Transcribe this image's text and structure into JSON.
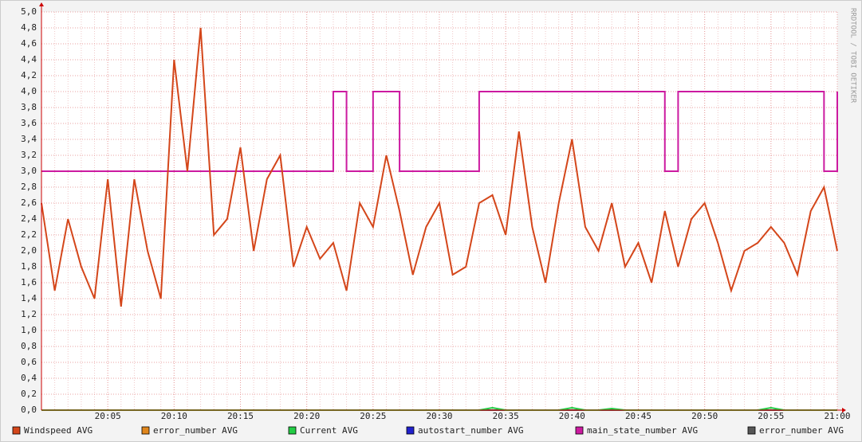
{
  "chart_data": {
    "type": "line",
    "watermark": "RRDTOOL / TOBI OETIKER",
    "x": [
      "20:00",
      "20:01",
      "20:02",
      "20:03",
      "20:04",
      "20:05",
      "20:06",
      "20:07",
      "20:08",
      "20:09",
      "20:10",
      "20:11",
      "20:12",
      "20:13",
      "20:14",
      "20:15",
      "20:16",
      "20:17",
      "20:18",
      "20:19",
      "20:20",
      "20:21",
      "20:22",
      "20:23",
      "20:24",
      "20:25",
      "20:26",
      "20:27",
      "20:28",
      "20:29",
      "20:30",
      "20:31",
      "20:32",
      "20:33",
      "20:34",
      "20:35",
      "20:36",
      "20:37",
      "20:38",
      "20:39",
      "20:40",
      "20:41",
      "20:42",
      "20:43",
      "20:44",
      "20:45",
      "20:46",
      "20:47",
      "20:48",
      "20:49",
      "20:50",
      "20:51",
      "20:52",
      "20:53",
      "20:54",
      "20:55",
      "20:56",
      "20:57",
      "20:58",
      "20:59",
      "21:00"
    ],
    "xlim": [
      "20:00",
      "21:00"
    ],
    "xticks": [
      "20:05",
      "20:10",
      "20:15",
      "20:20",
      "20:25",
      "20:30",
      "20:35",
      "20:40",
      "20:45",
      "20:50",
      "20:55",
      "21:00"
    ],
    "ylim": [
      0,
      5
    ],
    "yticks": [
      {
        "value": 0,
        "label": "0,0"
      },
      {
        "value": 0.2,
        "label": "0,2"
      },
      {
        "value": 0.4,
        "label": "0,4"
      },
      {
        "value": 0.6,
        "label": "0,6"
      },
      {
        "value": 0.8,
        "label": "0,8"
      },
      {
        "value": 1,
        "label": "1,0"
      },
      {
        "value": 1.2,
        "label": "1,2"
      },
      {
        "value": 1.4,
        "label": "1,4"
      },
      {
        "value": 1.6,
        "label": "1,6"
      },
      {
        "value": 1.8,
        "label": "1,8"
      },
      {
        "value": 2,
        "label": "2,0"
      },
      {
        "value": 2.2,
        "label": "2,2"
      },
      {
        "value": 2.4,
        "label": "2,4"
      },
      {
        "value": 2.6,
        "label": "2,6"
      },
      {
        "value": 2.8,
        "label": "2,8"
      },
      {
        "value": 3,
        "label": "3,0"
      },
      {
        "value": 3.2,
        "label": "3,2"
      },
      {
        "value": 3.4,
        "label": "3,4"
      },
      {
        "value": 3.6,
        "label": "3,6"
      },
      {
        "value": 3.8,
        "label": "3,8"
      },
      {
        "value": 4,
        "label": "4,0"
      },
      {
        "value": 4.2,
        "label": "4,2"
      },
      {
        "value": 4.4,
        "label": "4,4"
      },
      {
        "value": 4.6,
        "label": "4,6"
      },
      {
        "value": 4.8,
        "label": "4,8"
      },
      {
        "value": 5,
        "label": "5,0"
      }
    ],
    "grid": true,
    "series": [
      {
        "name": "Windspeed AVG",
        "color": "#d4461a",
        "values": [
          2.6,
          1.5,
          2.4,
          1.8,
          1.4,
          2.9,
          1.3,
          2.9,
          2.0,
          1.4,
          4.4,
          3.0,
          4.8,
          2.2,
          2.4,
          3.3,
          2.0,
          2.9,
          3.2,
          1.8,
          2.3,
          1.9,
          2.1,
          1.5,
          2.6,
          2.3,
          3.2,
          2.5,
          1.7,
          2.3,
          2.6,
          1.7,
          1.8,
          2.6,
          2.7,
          2.2,
          3.5,
          2.3,
          1.6,
          2.6,
          3.4,
          2.3,
          2.0,
          2.6,
          1.8,
          2.1,
          1.6,
          2.5,
          1.8,
          2.4,
          2.6,
          2.1,
          1.5,
          2.0,
          2.1,
          2.3,
          2.1,
          1.7,
          2.5,
          2.8,
          2.0
        ]
      },
      {
        "name": "error_number AVG",
        "color": "#e0861c",
        "values": [
          0,
          0,
          0,
          0,
          0,
          0,
          0,
          0,
          0,
          0,
          0,
          0,
          0,
          0,
          0,
          0,
          0,
          0,
          0,
          0,
          0,
          0,
          0,
          0,
          0,
          0,
          0,
          0,
          0,
          0,
          0,
          0,
          0,
          0,
          0,
          0,
          0,
          0,
          0,
          0,
          0,
          0,
          0,
          0,
          0,
          0,
          0,
          0,
          0,
          0,
          0,
          0,
          0,
          0,
          0,
          0,
          0,
          0,
          0,
          0,
          0
        ]
      },
      {
        "name": "Current AVG",
        "color": "#22cc44",
        "values": [
          0,
          0,
          0,
          0,
          0,
          0,
          0,
          0,
          0,
          0,
          0,
          0,
          0,
          0,
          0,
          0,
          0,
          0,
          0,
          0,
          0,
          0,
          0,
          0,
          0,
          0,
          0,
          0,
          0,
          0,
          0,
          0,
          0,
          0,
          0.03,
          0,
          0,
          0,
          0,
          0,
          0.03,
          0,
          0,
          0.02,
          0,
          0,
          0,
          0,
          0,
          0,
          0,
          0,
          0,
          0,
          0,
          0.03,
          0,
          0,
          0,
          0,
          0
        ]
      },
      {
        "name": "autostart_number AVG",
        "color": "#2020cc",
        "values": [
          0,
          0,
          0,
          0,
          0,
          0,
          0,
          0,
          0,
          0,
          0,
          0,
          0,
          0,
          0,
          0,
          0,
          0,
          0,
          0,
          0,
          0,
          0,
          0,
          0,
          0,
          0,
          0,
          0,
          0,
          0,
          0,
          0,
          0,
          0,
          0,
          0,
          0,
          0,
          0,
          0,
          0,
          0,
          0,
          0,
          0,
          0,
          0,
          0,
          0,
          0,
          0,
          0,
          0,
          0,
          0,
          0,
          0,
          0,
          0,
          0
        ]
      },
      {
        "name": "main_state_number AVG",
        "color": "#cc1aa0",
        "step": true,
        "values": [
          3,
          3,
          3,
          3,
          3,
          3,
          3,
          3,
          3,
          3,
          3,
          3,
          3,
          3,
          3,
          3,
          3,
          3,
          3,
          3,
          3,
          3,
          4,
          3,
          3,
          4,
          4,
          3,
          3,
          3,
          3,
          3,
          3,
          4,
          4,
          4,
          4,
          4,
          4,
          4,
          4,
          4,
          4,
          4,
          4,
          4,
          4,
          3,
          4,
          4,
          4,
          4,
          4,
          4,
          4,
          4,
          4,
          4,
          4,
          3,
          4
        ]
      },
      {
        "name": "error_number AVG",
        "color": "#555555",
        "values": [
          0,
          0,
          0,
          0,
          0,
          0,
          0,
          0,
          0,
          0,
          0,
          0,
          0,
          0,
          0,
          0,
          0,
          0,
          0,
          0,
          0,
          0,
          0,
          0,
          0,
          0,
          0,
          0,
          0,
          0,
          0,
          0,
          0,
          0,
          0,
          0,
          0,
          0,
          0,
          0,
          0,
          0,
          0,
          0,
          0,
          0,
          0,
          0,
          0,
          0,
          0,
          0,
          0,
          0,
          0,
          0,
          0,
          0,
          0,
          0,
          0
        ]
      }
    ]
  }
}
